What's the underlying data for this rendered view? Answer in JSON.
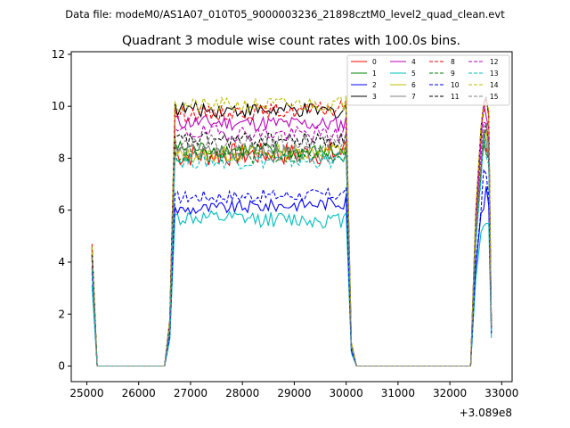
{
  "chart_data": {
    "type": "line",
    "suptitle": "Data file: modeM0/AS1A07_010T05_9000003236_21898cztM0_level2_quad_clean.evt",
    "title": "Quadrant 3 module wise count rates with 100.0s bins.",
    "xlabel": "",
    "ylabel": "",
    "x_offset_label": "+3.089e8",
    "xlim": [
      24700,
      33200
    ],
    "ylim": [
      -0.6,
      12.1
    ],
    "xticks": [
      25000,
      26000,
      27000,
      28000,
      29000,
      30000,
      31000,
      32000,
      33000
    ],
    "yticks": [
      0,
      2,
      4,
      6,
      8,
      10,
      12
    ],
    "grid": false,
    "legend_placement": "top-right",
    "legend_columns": 4,
    "series": [
      {
        "name": "0",
        "color": "#ff0000",
        "dash": "solid",
        "start": 4.7,
        "plateau1": 8.1,
        "plateau2": 8.2,
        "spread": 0.45
      },
      {
        "name": "1",
        "color": "#008000",
        "dash": "solid",
        "start": 4.4,
        "plateau1": 8.4,
        "plateau2": 8.2,
        "spread": 0.3
      },
      {
        "name": "2",
        "color": "#0000ff",
        "dash": "solid",
        "start": 3.8,
        "plateau1": 6.0,
        "plateau2": 6.3,
        "spread": 0.25
      },
      {
        "name": "3",
        "color": "#000000",
        "dash": "solid",
        "start": 4.6,
        "plateau1": 9.9,
        "plateau2": 9.8,
        "spread": 0.3
      },
      {
        "name": "4",
        "color": "#bf00bf",
        "dash": "solid",
        "start": 4.2,
        "plateau1": 9.4,
        "plateau2": 9.3,
        "spread": 0.3
      },
      {
        "name": "5",
        "color": "#00bfbf",
        "dash": "solid",
        "start": 3.1,
        "plateau1": 5.7,
        "plateau2": 5.6,
        "spread": 0.3
      },
      {
        "name": "6",
        "color": "#bfbf00",
        "dash": "solid",
        "start": 4.5,
        "plateau1": 8.1,
        "plateau2": 8.3,
        "spread": 0.3
      },
      {
        "name": "7",
        "color": "#808080",
        "dash": "solid",
        "start": 4.1,
        "plateau1": 8.3,
        "plateau2": 8.1,
        "spread": 0.3
      },
      {
        "name": "8",
        "color": "#ff0000",
        "dash": "dashed",
        "start": 4.5,
        "plateau1": 9.7,
        "plateau2": 9.9,
        "spread": 0.3
      },
      {
        "name": "9",
        "color": "#008000",
        "dash": "dashed",
        "start": 4.3,
        "plateau1": 8.1,
        "plateau2": 8.1,
        "spread": 0.3
      },
      {
        "name": "10",
        "color": "#0000ff",
        "dash": "dashed",
        "start": 3.6,
        "plateau1": 6.5,
        "plateau2": 6.6,
        "spread": 0.25
      },
      {
        "name": "11",
        "color": "#000000",
        "dash": "dashed",
        "start": 4.3,
        "plateau1": 8.7,
        "plateau2": 8.7,
        "spread": 0.3
      },
      {
        "name": "12",
        "color": "#bf00bf",
        "dash": "dashed",
        "start": 4.2,
        "plateau1": 9.0,
        "plateau2": 8.9,
        "spread": 0.3
      },
      {
        "name": "13",
        "color": "#00bfbf",
        "dash": "dashed",
        "start": 3.7,
        "plateau1": 7.9,
        "plateau2": 7.9,
        "spread": 0.3
      },
      {
        "name": "14",
        "color": "#bfbf00",
        "dash": "dashed",
        "start": 4.6,
        "plateau1": 10.0,
        "plateau2": 10.1,
        "spread": 0.3
      },
      {
        "name": "15",
        "color": "#808080",
        "dash": "dashed",
        "start": 4.2,
        "plateau1": 8.6,
        "plateau2": 8.6,
        "spread": 0.3
      }
    ],
    "segments": {
      "start_x": 25100,
      "drop_x": 25200,
      "zero1_end": 26500,
      "rise_x": [
        26600,
        26700
      ],
      "plateau1_x": [
        26700,
        30000
      ],
      "fall_x": [
        30000,
        30100,
        30200
      ],
      "zero2_end": 32400,
      "rise2_x": [
        32500,
        32600
      ],
      "end_x": 32800,
      "step": 50
    }
  }
}
